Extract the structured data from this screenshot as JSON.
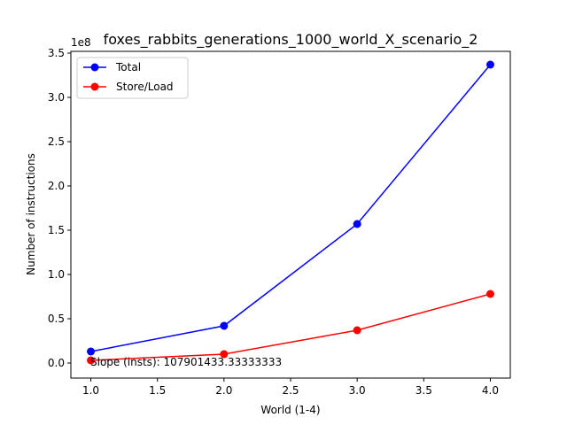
{
  "chart_data": {
    "type": "line",
    "title": "foxes_rabbits_generations_1000_world_X_scenario_2",
    "xlabel": "World (1-4)",
    "ylabel": "Number of instructions",
    "y_offset_text": "1e8",
    "x": [
      1.0,
      2.0,
      3.0,
      4.0
    ],
    "xlim": [
      0.85,
      4.15
    ],
    "ylim": [
      -0.17,
      3.52
    ],
    "y_unit_multiplier": 100000000,
    "x_ticks": [
      1.0,
      1.5,
      2.0,
      2.5,
      3.0,
      3.5,
      4.0
    ],
    "x_tick_labels": [
      "1.0",
      "1.5",
      "2.0",
      "2.5",
      "3.0",
      "3.5",
      "4.0"
    ],
    "y_ticks": [
      0.0,
      0.5,
      1.0,
      1.5,
      2.0,
      2.5,
      3.0,
      3.5
    ],
    "y_tick_labels": [
      "0.0",
      "0.5",
      "1.0",
      "1.5",
      "2.0",
      "2.5",
      "3.0",
      "3.5"
    ],
    "series": [
      {
        "name": "Total",
        "color": "#0000ff",
        "values": [
          0.13,
          0.42,
          1.57,
          3.37
        ]
      },
      {
        "name": "Store/Load",
        "color": "#ff0000",
        "values": [
          0.03,
          0.1,
          0.37,
          0.78
        ]
      }
    ],
    "legend_position": "upper-left",
    "grid": false,
    "annotation": "Slope (insts): 107901433.33333333"
  }
}
